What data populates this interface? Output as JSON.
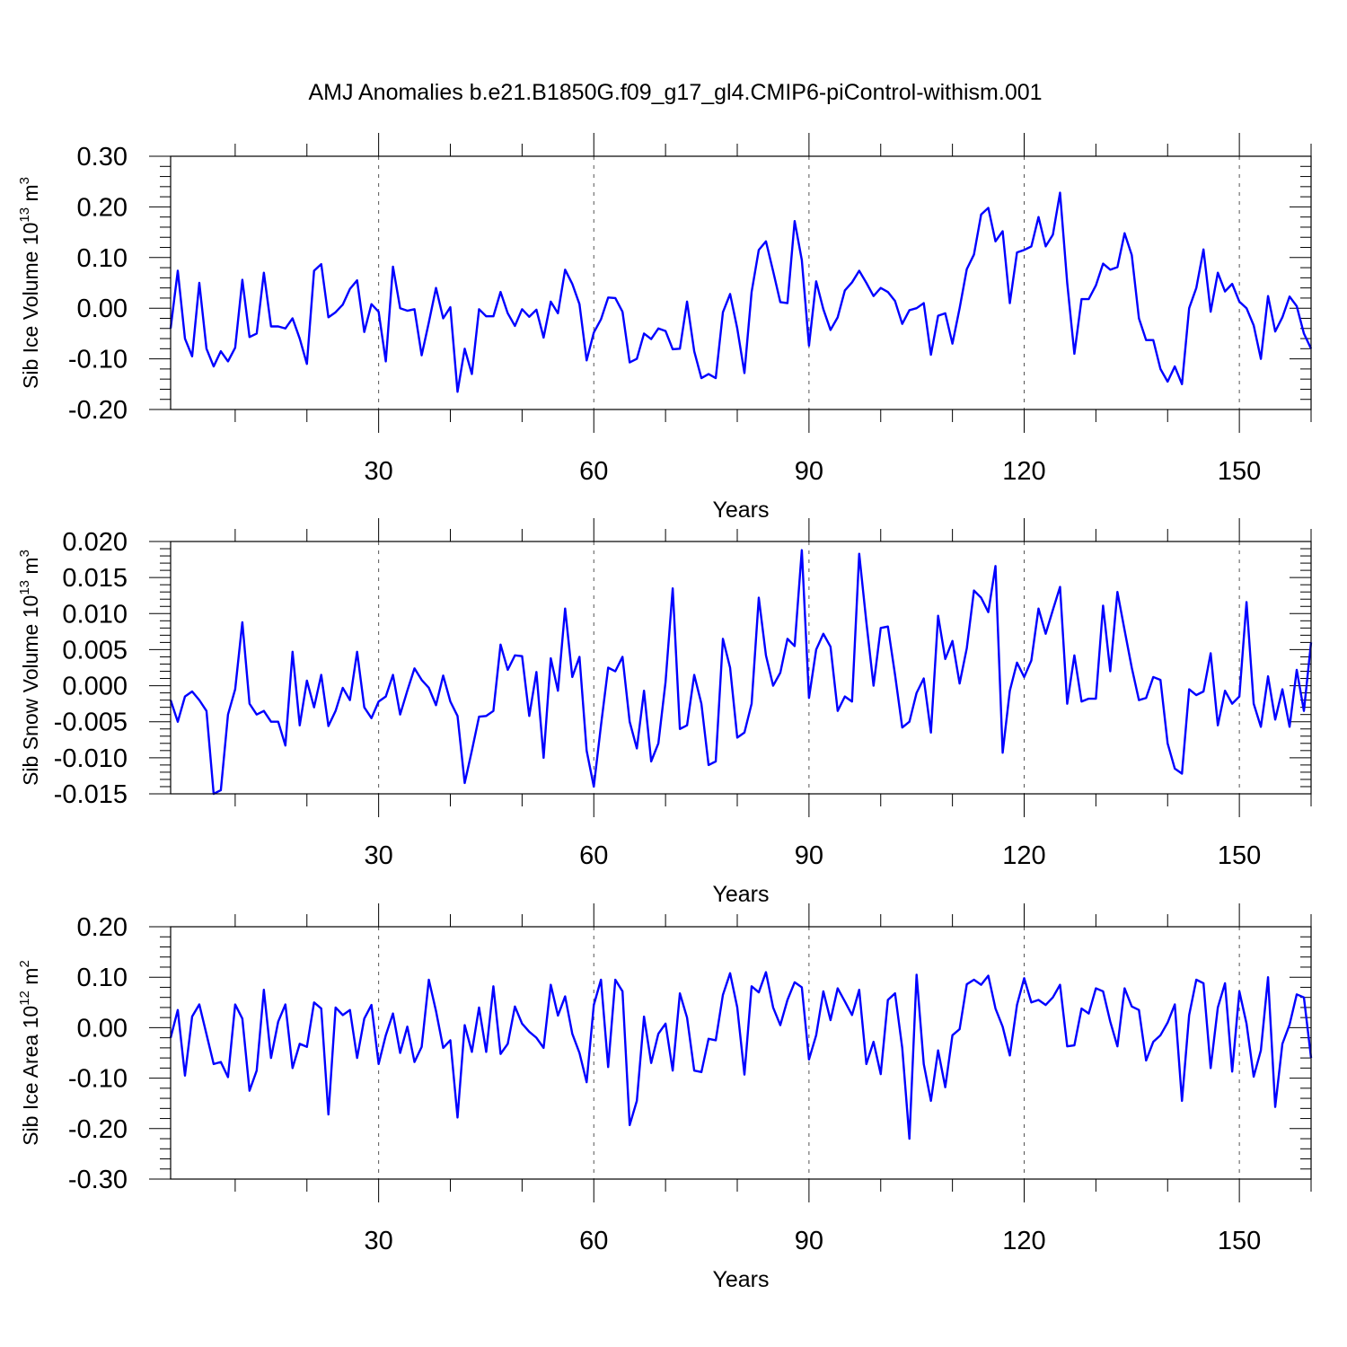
{
  "title": "AMJ Anomalies b.e21.B1850G.f09_g17_gl4.CMIP6-piControl-withism.001",
  "colors": {
    "line": "#0000ff",
    "grid": "#555555",
    "axis": "#000000"
  },
  "chart_data": [
    {
      "type": "line",
      "ylabel": "Sib Ice Volume 10",
      "ylabel_exp": "13",
      "ylabel_unit": " m",
      "ylabel_unit_exp": "3",
      "xlabel": "Years",
      "xlim": [
        1,
        160
      ],
      "ylim": [
        -0.2,
        0.3
      ],
      "xticks": [
        30,
        60,
        90,
        120,
        150
      ],
      "xtick_labels": [
        "30",
        "60",
        "90",
        "120",
        "150"
      ],
      "yticks": [
        -0.2,
        -0.1,
        0.0,
        0.1,
        0.2,
        0.3
      ],
      "ytick_labels": [
        "-0.20",
        "-0.10",
        "0.00",
        "0.10",
        "0.20",
        "0.30"
      ],
      "grid": "vertical dashed at major x ticks",
      "series": [
        {
          "values": [
            -0.04,
            0.074,
            -0.06,
            -0.095,
            0.05,
            -0.08,
            -0.115,
            -0.085,
            -0.105,
            -0.078,
            0.056,
            -0.057,
            -0.05,
            0.07,
            -0.036,
            -0.036,
            -0.04,
            -0.02,
            -0.06,
            -0.11,
            0.074,
            0.087,
            -0.018,
            -0.008,
            0.007,
            0.038,
            0.055,
            -0.047,
            0.008,
            -0.007,
            -0.105,
            0.082,
            0.0,
            -0.005,
            -0.002,
            -0.093,
            -0.028,
            0.04,
            -0.02,
            0.002,
            -0.165,
            -0.08,
            -0.13,
            -0.002,
            -0.016,
            -0.016,
            0.032,
            -0.01,
            -0.035,
            -0.002,
            -0.017,
            -0.003,
            -0.058,
            0.013,
            -0.01,
            0.076,
            0.048,
            0.008,
            -0.103,
            -0.048,
            -0.022,
            0.021,
            0.02,
            -0.007,
            -0.107,
            -0.1,
            -0.05,
            -0.061,
            -0.04,
            -0.045,
            -0.081,
            -0.08,
            0.013,
            -0.085,
            -0.138,
            -0.13,
            -0.138,
            -0.008,
            0.028,
            -0.04,
            -0.128,
            0.032,
            0.115,
            0.132,
            0.073,
            0.012,
            0.01,
            0.172,
            0.095,
            -0.074,
            0.053,
            -0.002,
            -0.043,
            -0.018,
            0.035,
            0.051,
            0.074,
            0.05,
            0.024,
            0.04,
            0.032,
            0.014,
            -0.031,
            -0.004,
            0.0,
            0.01,
            -0.092,
            -0.015,
            -0.01,
            -0.07,
            0.0,
            0.077,
            0.106,
            0.185,
            0.198,
            0.132,
            0.152,
            0.01,
            0.11,
            0.115,
            0.122,
            0.18,
            0.122,
            0.145,
            0.228,
            0.05,
            -0.09,
            0.018,
            0.018,
            0.045,
            0.088,
            0.076,
            0.081,
            0.148,
            0.105,
            -0.02,
            -0.063,
            -0.063,
            -0.12,
            -0.145,
            -0.115,
            -0.15,
            0.0,
            0.04,
            0.116,
            -0.007,
            0.07,
            0.033,
            0.048,
            0.013,
            0.0,
            -0.034,
            -0.1,
            0.024,
            -0.046,
            -0.018,
            0.023,
            0.004,
            -0.05,
            -0.08
          ]
        }
      ]
    },
    {
      "type": "line",
      "ylabel": "Sib Snow Volume 10",
      "ylabel_exp": "13",
      "ylabel_unit": " m",
      "ylabel_unit_exp": "3",
      "xlabel": "Years",
      "xlim": [
        1,
        160
      ],
      "ylim": [
        -0.015,
        0.02
      ],
      "xticks": [
        30,
        60,
        90,
        120,
        150
      ],
      "xtick_labels": [
        "30",
        "60",
        "90",
        "120",
        "150"
      ],
      "yticks": [
        -0.015,
        -0.01,
        -0.005,
        0.0,
        0.005,
        0.01,
        0.015,
        0.02
      ],
      "ytick_labels": [
        "-0.015",
        "-0.010",
        "-0.005",
        "0.000",
        "0.005",
        "0.010",
        "0.015",
        "0.020"
      ],
      "grid": "vertical dashed at major x ticks",
      "series": [
        {
          "values": [
            -0.002,
            -0.005,
            -0.0015,
            -0.0008,
            -0.002,
            -0.0035,
            -0.015,
            -0.0145,
            -0.004,
            -0.0005,
            0.0088,
            -0.0025,
            -0.004,
            -0.0035,
            -0.005,
            -0.005,
            -0.0083,
            0.0047,
            -0.0055,
            0.0007,
            -0.003,
            0.0015,
            -0.0056,
            -0.0035,
            -0.0003,
            -0.002,
            0.0047,
            -0.003,
            -0.0045,
            -0.0022,
            -0.0015,
            0.0015,
            -0.004,
            -0.0007,
            0.0024,
            0.0008,
            -0.0003,
            -0.0027,
            0.0014,
            -0.0022,
            -0.0042,
            -0.0135,
            -0.009,
            -0.0043,
            -0.0042,
            -0.0035,
            0.0057,
            0.0022,
            0.0042,
            0.0041,
            -0.0042,
            0.0019,
            -0.01,
            0.0038,
            -0.0007,
            0.0107,
            0.0012,
            0.004,
            -0.009,
            -0.014,
            -0.0055,
            0.0025,
            0.002,
            0.004,
            -0.005,
            -0.0087,
            -0.0007,
            -0.0105,
            -0.008,
            0.0005,
            0.0135,
            -0.006,
            -0.0055,
            0.0015,
            -0.0025,
            -0.011,
            -0.0105,
            0.0065,
            0.0025,
            -0.0072,
            -0.0065,
            -0.0025,
            0.0122,
            0.0042,
            0.0,
            0.0018,
            0.0065,
            0.0055,
            0.0188,
            -0.0017,
            0.005,
            0.0072,
            0.0054,
            -0.0035,
            -0.0015,
            -0.0022,
            0.0183,
            0.0088,
            0.0,
            0.008,
            0.0082,
            0.0015,
            -0.0058,
            -0.005,
            -0.001,
            0.001,
            -0.0065,
            0.0097,
            0.0037,
            0.0062,
            0.0003,
            0.0052,
            0.0132,
            0.0122,
            0.0102,
            0.0166,
            -0.0093,
            -0.0007,
            0.0032,
            0.0012,
            0.0035,
            0.0107,
            0.0072,
            0.0105,
            0.0137,
            -0.0025,
            0.0042,
            -0.0022,
            -0.0018,
            -0.0018,
            0.0111,
            0.002,
            0.013,
            0.0077,
            0.0025,
            -0.002,
            -0.0017,
            0.0012,
            0.0008,
            -0.008,
            -0.0115,
            -0.0122,
            -0.0005,
            -0.0013,
            -0.0008,
            0.0045,
            -0.0055,
            -0.0007,
            -0.0025,
            -0.0015,
            0.0116,
            -0.0025,
            -0.0057,
            0.0013,
            -0.0047,
            -0.0005,
            -0.0057,
            0.0022,
            -0.0035,
            0.006
          ]
        }
      ]
    },
    {
      "type": "line",
      "ylabel": "Sib Ice Area 10",
      "ylabel_exp": "12",
      "ylabel_unit": " m",
      "ylabel_unit_exp": "2",
      "xlabel": "Years",
      "xlim": [
        1,
        160
      ],
      "ylim": [
        -0.3,
        0.2
      ],
      "xticks": [
        30,
        60,
        90,
        120,
        150
      ],
      "xtick_labels": [
        "30",
        "60",
        "90",
        "120",
        "150"
      ],
      "yticks": [
        -0.3,
        -0.2,
        -0.1,
        0.0,
        0.1,
        0.2
      ],
      "ytick_labels": [
        "-0.30",
        "-0.20",
        "-0.10",
        "0.00",
        "0.10",
        "0.20"
      ],
      "grid": "vertical dashed at major x ticks",
      "series": [
        {
          "values": [
            -0.02,
            0.035,
            -0.095,
            0.022,
            0.046,
            -0.013,
            -0.072,
            -0.068,
            -0.098,
            0.046,
            0.018,
            -0.125,
            -0.085,
            0.075,
            -0.06,
            0.012,
            0.046,
            -0.08,
            -0.032,
            -0.038,
            0.05,
            0.038,
            -0.172,
            0.04,
            0.025,
            0.035,
            -0.06,
            0.018,
            0.045,
            -0.072,
            -0.015,
            0.028,
            -0.05,
            0.002,
            -0.068,
            -0.038,
            0.095,
            0.033,
            -0.04,
            -0.025,
            -0.178,
            0.005,
            -0.048,
            0.04,
            -0.048,
            0.082,
            -0.052,
            -0.032,
            0.042,
            0.008,
            -0.008,
            -0.02,
            -0.04,
            0.085,
            0.024,
            0.062,
            -0.012,
            -0.05,
            -0.108,
            0.045,
            0.095,
            -0.078,
            0.095,
            0.072,
            -0.193,
            -0.145,
            0.022,
            -0.07,
            -0.012,
            0.008,
            -0.085,
            0.068,
            0.02,
            -0.085,
            -0.088,
            -0.022,
            -0.025,
            0.065,
            0.108,
            0.04,
            -0.093,
            0.082,
            0.07,
            0.11,
            0.04,
            0.005,
            0.055,
            0.09,
            0.08,
            -0.063,
            -0.015,
            0.072,
            0.015,
            0.078,
            0.052,
            0.025,
            0.075,
            -0.072,
            -0.028,
            -0.092,
            0.055,
            0.068,
            -0.04,
            -0.22,
            0.105,
            -0.072,
            -0.145,
            -0.045,
            -0.118,
            -0.015,
            -0.003,
            0.086,
            0.095,
            0.085,
            0.103,
            0.038,
            0.002,
            -0.055,
            0.045,
            0.098,
            0.05,
            0.055,
            0.045,
            0.06,
            0.085,
            -0.037,
            -0.035,
            0.038,
            0.028,
            0.078,
            0.072,
            0.012,
            -0.037,
            0.078,
            0.042,
            0.035,
            -0.065,
            -0.028,
            -0.015,
            0.01,
            0.046,
            -0.145,
            0.025,
            0.095,
            0.088,
            -0.08,
            0.04,
            0.088,
            -0.087,
            0.072,
            0.008,
            -0.097,
            -0.045,
            0.1,
            -0.157,
            -0.032,
            0.006,
            0.066,
            0.06,
            -0.06
          ]
        }
      ]
    }
  ]
}
